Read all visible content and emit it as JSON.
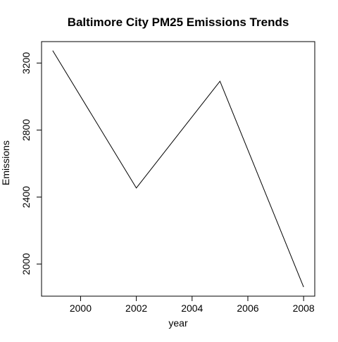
{
  "chart_data": {
    "type": "line",
    "title": "Baltimore City PM25 Emissions Trends",
    "xlabel": "year",
    "ylabel": "Emissions",
    "x": [
      1999,
      2002,
      2005,
      2008
    ],
    "series": [
      {
        "values": [
          3274.2,
          2453.9,
          3091.4,
          1862.3
        ]
      }
    ],
    "xlim": [
      1998.6,
      2008.4
    ],
    "ylim": [
      1808,
      3328
    ],
    "xticks": [
      2000,
      2002,
      2004,
      2006,
      2008
    ],
    "yticks": [
      2000,
      2400,
      2800,
      3200
    ],
    "grid": false,
    "legend": "none",
    "colors": {
      "line": "#000000",
      "axis": "#000000",
      "background": "#ffffff"
    }
  }
}
